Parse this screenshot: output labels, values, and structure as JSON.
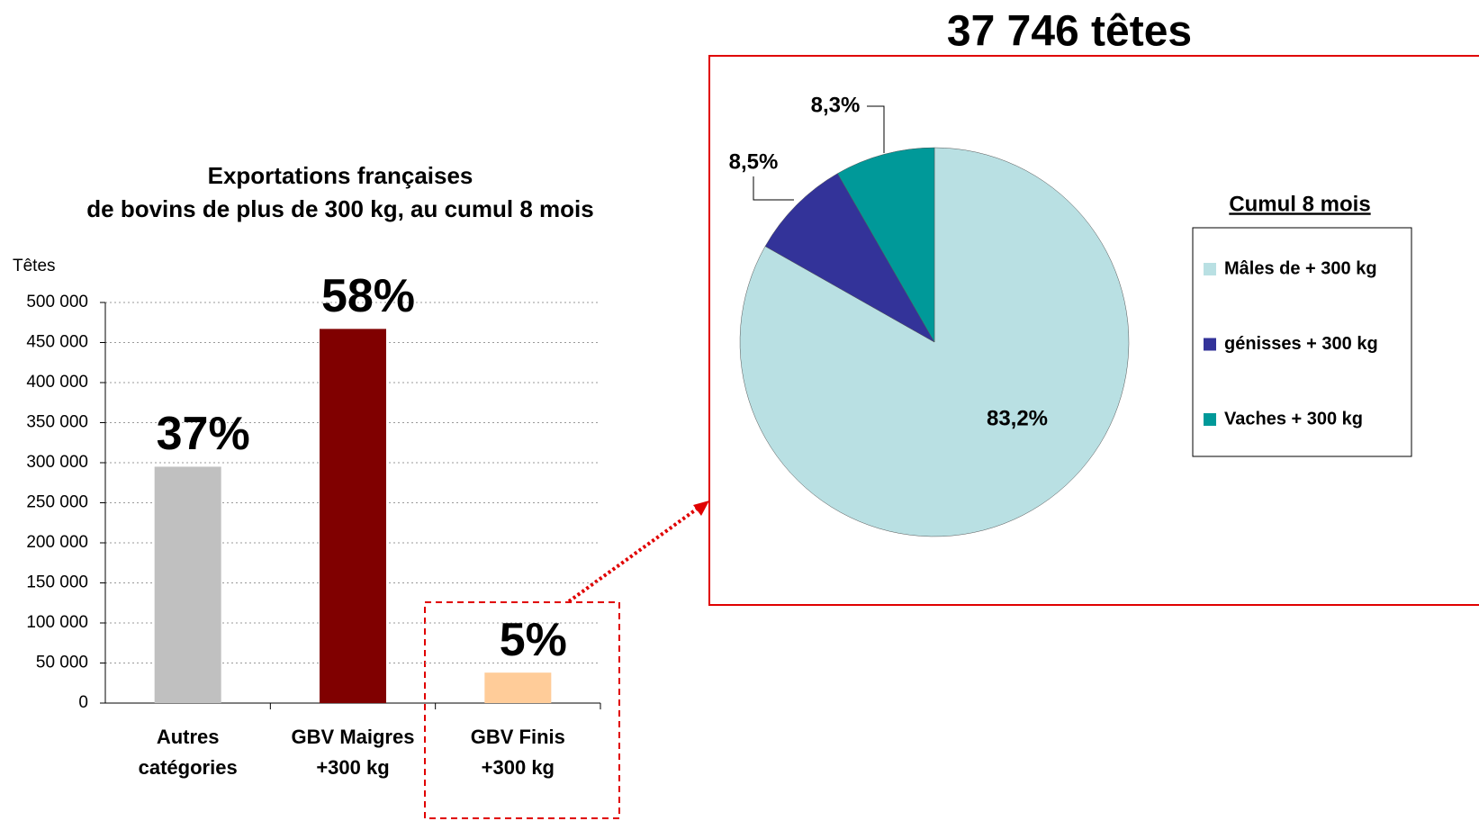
{
  "chart_data": [
    {
      "type": "bar",
      "title": [
        "Exportations françaises",
        "de bovins de plus de 300 kg, au cumul 8 mois"
      ],
      "y_label": "Têtes",
      "categories": [
        [
          "Autres",
          "catégories"
        ],
        [
          "GBV Maigres",
          "+300 kg"
        ],
        [
          "GBV Finis",
          "+300 kg"
        ]
      ],
      "values": [
        295000,
        467000,
        38000
      ],
      "colors": [
        "#c0c0c0",
        "#800000",
        "#ffcc99"
      ],
      "annotations": [
        "37%",
        "58%",
        "5%"
      ],
      "ylim": [
        0,
        500000
      ],
      "yticks": [
        0,
        {
          "value": 50000,
          "label": "50 000"
        },
        {
          "value": 100000,
          "label": "100 000"
        },
        {
          "value": 150000,
          "label": "150 000"
        },
        {
          "value": 200000,
          "label": "200 000"
        },
        {
          "value": 250000,
          "label": "250 000"
        },
        {
          "value": 300000,
          "label": "300 000"
        },
        {
          "value": 350000,
          "label": "350 000"
        },
        {
          "value": 400000,
          "label": "400 000"
        },
        {
          "value": 450000,
          "label": "450 000"
        },
        {
          "value": 500000,
          "label": "500 000"
        }
      ],
      "grid": true
    },
    {
      "type": "pie",
      "title": "37 746 têtes",
      "legend_title": "Cumul 8 mois",
      "categories": [
        "Mâles de + 300 kg",
        "génisses + 300 kg",
        "Vaches + 300 kg"
      ],
      "values": [
        83.2,
        8.5,
        8.3
      ],
      "value_labels": [
        "83,2%",
        "8,5%",
        "8,3%"
      ],
      "colors": [
        "#b9e0e3",
        "#333399",
        "#009999"
      ],
      "legend": "right"
    }
  ]
}
